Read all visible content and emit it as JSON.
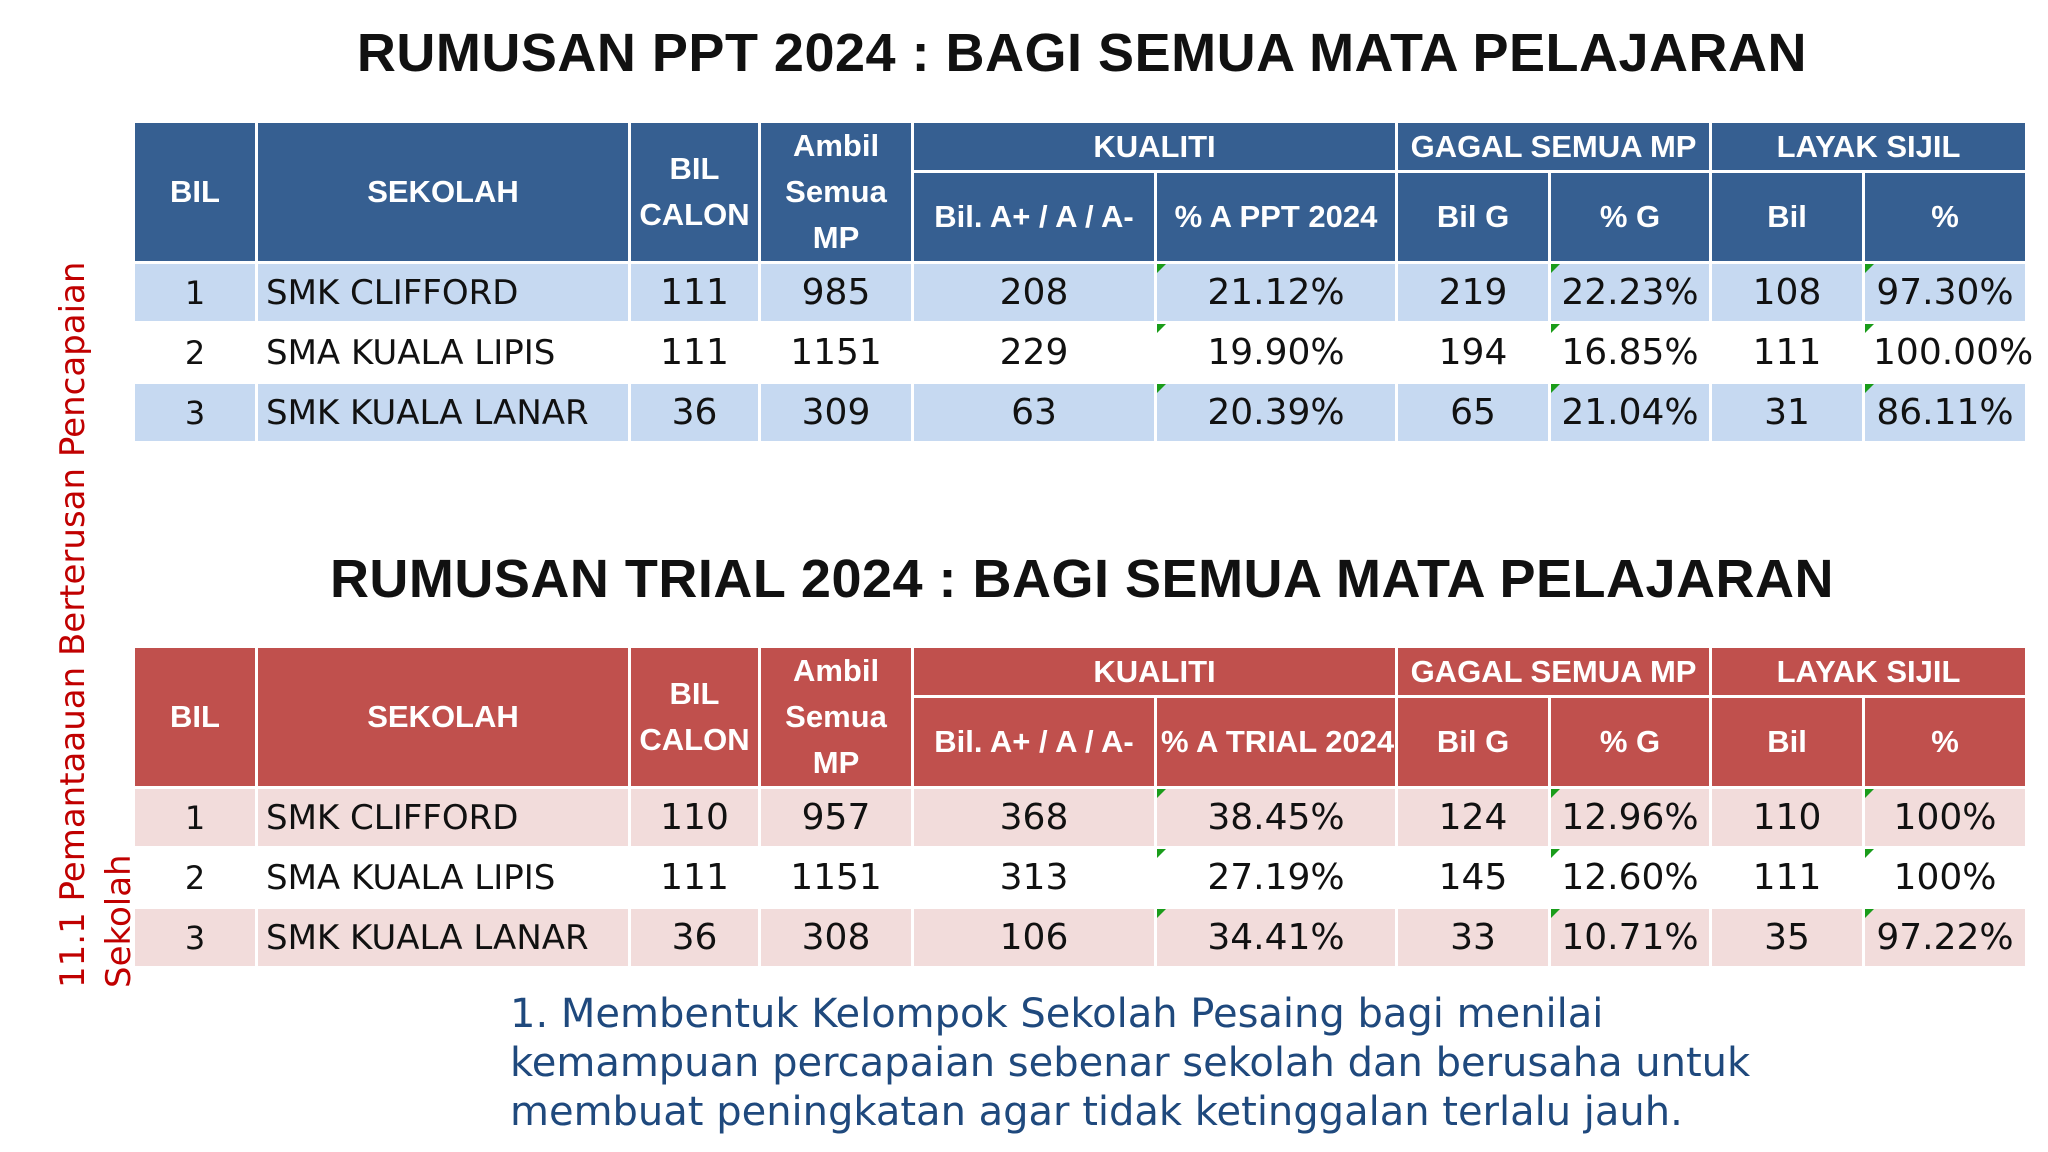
{
  "title1": "RUMUSAN PPT 2024 : BAGI SEMUA MATA PELAJARAN",
  "title2": "RUMUSAN TRIAL 2024 : BAGI SEMUA MATA PELAJARAN",
  "side_label": {
    "line1": "11.1  Pemantaauan Berterusan Pencapaian",
    "line2": "Sekolah"
  },
  "colors": {
    "ppt_header": "#365f91",
    "ppt_row_band": "#c6d9f1",
    "trial_header": "#c0504d",
    "trial_row_band": "#f2dcdb",
    "side_label": "#c00000",
    "note_text": "#1f497d"
  },
  "table1": {
    "headers": {
      "bil": "BIL",
      "sekolah": "SEKOLAH",
      "bil_calon_1": "BIL",
      "bil_calon_2": "CALON",
      "ambil_1": "Ambil",
      "ambil_2": "Semua",
      "ambil_3": "MP",
      "kualiti": "KUALITI",
      "gagal": "GAGAL SEMUA MP",
      "layak": "LAYAK SIJIL",
      "bil_a": "Bil. A+ / A / A-",
      "pct_a": "% A PPT 2024",
      "bil_g": "Bil G",
      "pct_g": "% G",
      "bil_l": "Bil",
      "pct_l": "%"
    },
    "rows": [
      {
        "bil": "1",
        "sekolah": "SMK CLIFFORD",
        "calon": "111",
        "ambil": "985",
        "bil_a": "208",
        "pct_a": "21.12%",
        "bil_g": "219",
        "pct_g": "22.23%",
        "bil_l": "108",
        "pct_l": "97.30%"
      },
      {
        "bil": "2",
        "sekolah": "SMA KUALA LIPIS",
        "calon": "111",
        "ambil": "1151",
        "bil_a": "229",
        "pct_a": "19.90%",
        "bil_g": "194",
        "pct_g": "16.85%",
        "bil_l": "111",
        "pct_l": "100.00%"
      },
      {
        "bil": "3",
        "sekolah": "SMK KUALA LANAR",
        "calon": "36",
        "ambil": "309",
        "bil_a": "63",
        "pct_a": "20.39%",
        "bil_g": "65",
        "pct_g": "21.04%",
        "bil_l": "31",
        "pct_l": "86.11%"
      }
    ]
  },
  "table2": {
    "headers": {
      "bil": "BIL",
      "sekolah": "SEKOLAH",
      "bil_calon_1": "BIL",
      "bil_calon_2": "CALON",
      "ambil_1": "Ambil",
      "ambil_2": "Semua",
      "ambil_3": "MP",
      "kualiti": "KUALITI",
      "gagal": "GAGAL SEMUA MP",
      "layak": "LAYAK SIJIL",
      "bil_a": "Bil. A+ / A / A-",
      "pct_a": "% A TRIAL 2024",
      "bil_g": "Bil G",
      "pct_g": "% G",
      "bil_l": "Bil",
      "pct_l": "%"
    },
    "rows": [
      {
        "bil": "1",
        "sekolah": "SMK CLIFFORD",
        "calon": "110",
        "ambil": "957",
        "bil_a": "368",
        "pct_a": "38.45%",
        "bil_g": "124",
        "pct_g": "12.96%",
        "bil_l": "110",
        "pct_l": "100%"
      },
      {
        "bil": "2",
        "sekolah": "SMA KUALA LIPIS",
        "calon": "111",
        "ambil": "1151",
        "bil_a": "313",
        "pct_a": "27.19%",
        "bil_g": "145",
        "pct_g": "12.60%",
        "bil_l": "111",
        "pct_l": "100%"
      },
      {
        "bil": "3",
        "sekolah": "SMK KUALA LANAR",
        "calon": "36",
        "ambil": "308",
        "bil_a": "106",
        "pct_a": "34.41%",
        "bil_g": "33",
        "pct_g": "10.71%",
        "bil_l": "35",
        "pct_l": "97.22%"
      }
    ]
  },
  "note": {
    "line1": "1. Membentuk Kelompok Sekolah Pesaing bagi menilai",
    "line2": "kemampuan percapaian sebenar sekolah dan berusaha untuk",
    "line3": "membuat peningkatan agar tidak ketinggalan terlalu jauh."
  }
}
